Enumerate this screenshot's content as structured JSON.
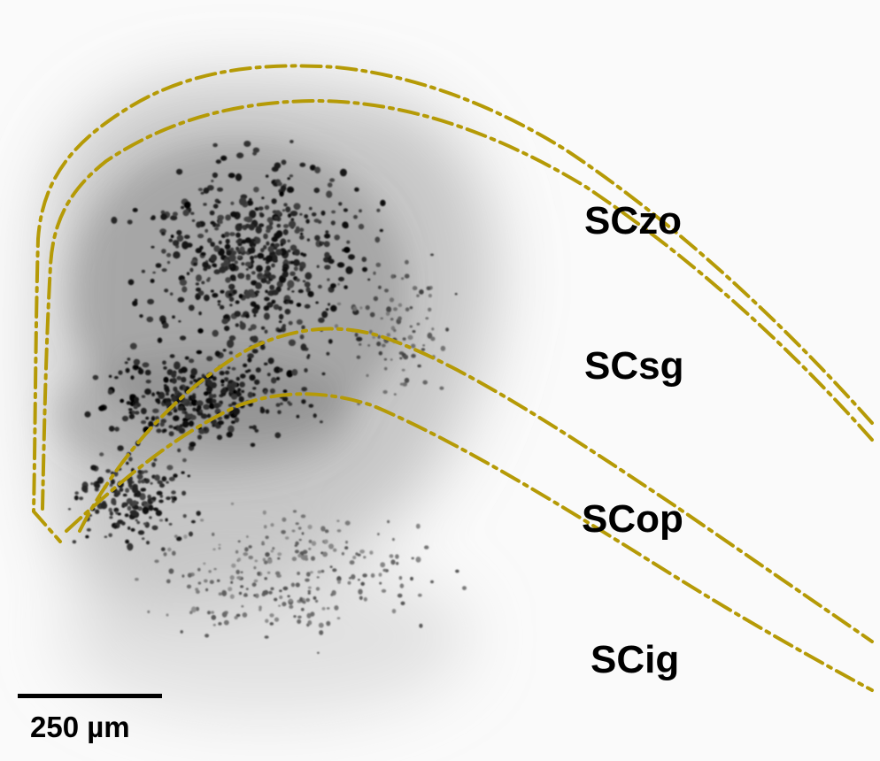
{
  "image": {
    "kind": "fluorescence micrograph (inverted grayscale) of superior colliculus section",
    "boundary_color": "#b59a06",
    "background_color": "#fafafa"
  },
  "layers": [
    {
      "id": "zo",
      "label": "SCzo"
    },
    {
      "id": "sg",
      "label": "SCsg"
    },
    {
      "id": "op",
      "label": "SCop"
    },
    {
      "id": "ig",
      "label": "SCig"
    }
  ],
  "scale_bar": {
    "label": "250 µm"
  }
}
